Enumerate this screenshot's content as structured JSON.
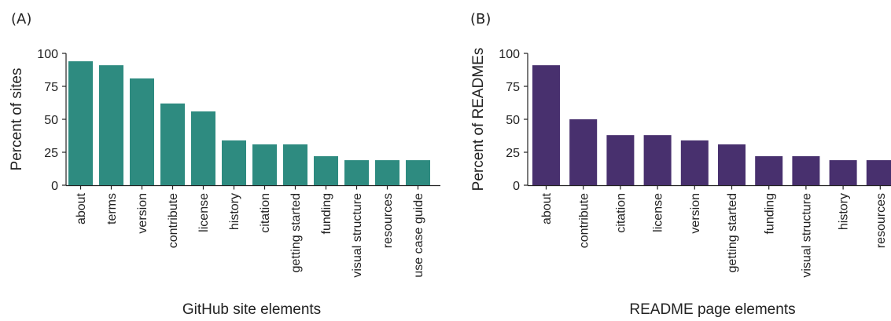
{
  "chart_data": [
    {
      "type": "bar",
      "panel_label": "(A)",
      "title": "",
      "xlabel": "GitHub site elements",
      "ylabel": "Percent of sites",
      "ylim": [
        0,
        100
      ],
      "yticks": [
        "0",
        "25",
        "50",
        "75",
        "100"
      ],
      "grid": false,
      "color": "#2e8b80",
      "categories": [
        "about",
        "terms",
        "version",
        "contribute",
        "license",
        "history",
        "citation",
        "getting started",
        "funding",
        "visual structure",
        "resources",
        "use case guide"
      ],
      "values": [
        94,
        91,
        81,
        62,
        56,
        34,
        31,
        31,
        22,
        19,
        19,
        19
      ]
    },
    {
      "type": "bar",
      "panel_label": "(B)",
      "title": "",
      "xlabel": "README page elements",
      "ylabel": "Percent of READMEs",
      "ylim": [
        0,
        100
      ],
      "yticks": [
        "0",
        "25",
        "50",
        "75",
        "100"
      ],
      "grid": false,
      "color": "#48306e",
      "categories": [
        "about",
        "contribute",
        "citation",
        "license",
        "version",
        "getting started",
        "funding",
        "visual structure",
        "history",
        "resources"
      ],
      "values": [
        91,
        50,
        38,
        38,
        34,
        31,
        22,
        22,
        19,
        19
      ]
    }
  ]
}
